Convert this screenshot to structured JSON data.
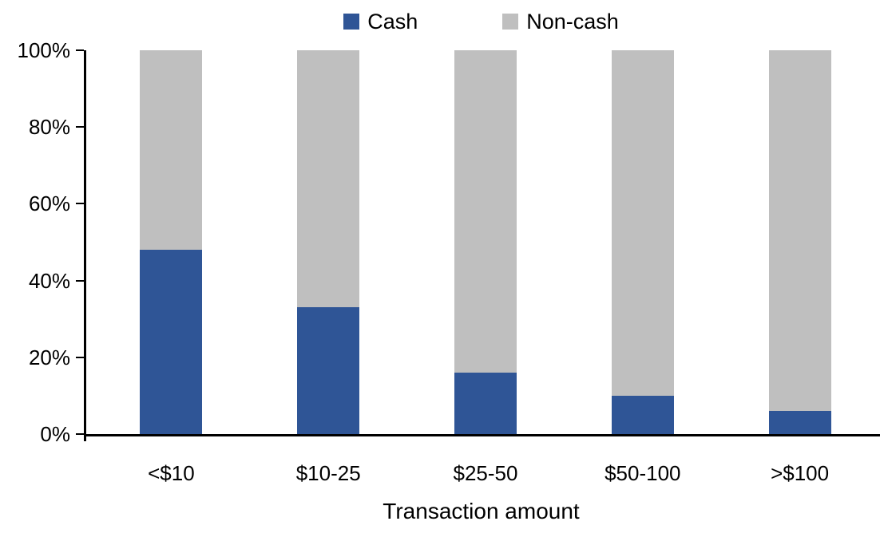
{
  "chart_data": {
    "type": "bar",
    "stacked": true,
    "title": "",
    "xlabel": "Transaction amount",
    "ylabel": "",
    "categories": [
      "<$10",
      "$10-25",
      "$25-50",
      "$50-100",
      ">$100"
    ],
    "series": [
      {
        "name": "Cash",
        "color": "#2F5596",
        "values": [
          48,
          33,
          16,
          10,
          6
        ]
      },
      {
        "name": "Non-cash",
        "color": "#BFBFBF",
        "values": [
          52,
          67,
          84,
          90,
          94
        ]
      }
    ],
    "ylim": [
      0,
      100
    ],
    "yticks": [
      "0%",
      "20%",
      "40%",
      "60%",
      "80%",
      "100%"
    ],
    "grid": false,
    "legend_position": "top-center",
    "axis_color": "#000000",
    "text_color": "#000000"
  }
}
